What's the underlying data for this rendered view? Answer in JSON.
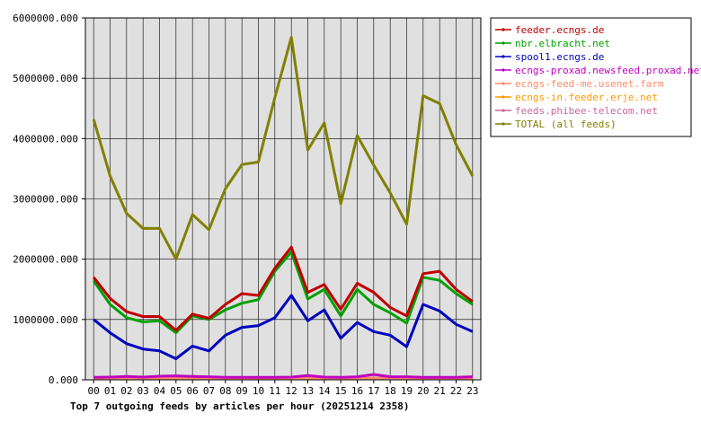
{
  "chart_data": {
    "type": "line",
    "title": "Top 7 outgoing feeds by articles per hour (20251214 2358)",
    "xlabel": "",
    "ylabel": "",
    "ylim": [
      0,
      6000000
    ],
    "yticks": [
      "0.000",
      "1000000.000",
      "2000000.000",
      "3000000.000",
      "4000000.000",
      "5000000.000",
      "6000000.000"
    ],
    "categories": [
      "00",
      "01",
      "02",
      "03",
      "04",
      "05",
      "06",
      "07",
      "08",
      "09",
      "10",
      "11",
      "12",
      "13",
      "14",
      "15",
      "16",
      "17",
      "18",
      "19",
      "20",
      "21",
      "22",
      "23"
    ],
    "grid": true,
    "legend_position": "right",
    "series": [
      {
        "name": "feeder.ecngs.de",
        "color": "#c00000",
        "values": [
          1700000,
          1350000,
          1130000,
          1050000,
          1050000,
          820000,
          1090000,
          1020000,
          1250000,
          1430000,
          1400000,
          1850000,
          2200000,
          1450000,
          1580000,
          1170000,
          1600000,
          1450000,
          1200000,
          1060000,
          1760000,
          1800000,
          1500000,
          1300000
        ]
      },
      {
        "name": "nbr.elbracht.net",
        "color": "#00a000",
        "values": [
          1640000,
          1250000,
          1030000,
          960000,
          980000,
          780000,
          1060000,
          1000000,
          1160000,
          1270000,
          1330000,
          1800000,
          2120000,
          1340000,
          1500000,
          1060000,
          1500000,
          1250000,
          1110000,
          940000,
          1700000,
          1650000,
          1430000,
          1250000
        ]
      },
      {
        "name": "spool1.ecngs.de",
        "color": "#0000c0",
        "values": [
          1000000,
          780000,
          600000,
          510000,
          480000,
          350000,
          560000,
          480000,
          740000,
          870000,
          900000,
          1030000,
          1400000,
          980000,
          1160000,
          690000,
          950000,
          800000,
          740000,
          550000,
          1250000,
          1140000,
          920000,
          800000
        ]
      },
      {
        "name": "ecngs-proxad.newsfeed.proxad.net",
        "color": "#c000c0",
        "values": [
          40000,
          45000,
          55000,
          45000,
          60000,
          65000,
          55000,
          50000,
          40000,
          40000,
          40000,
          40000,
          45000,
          70000,
          45000,
          40000,
          50000,
          90000,
          50000,
          50000,
          40000,
          40000,
          40000,
          50000
        ]
      },
      {
        "name": "ecngs-feed-me.usenet.farm",
        "color": "#ff8c69",
        "values": [
          30000,
          30000,
          30000,
          30000,
          30000,
          30000,
          30000,
          30000,
          30000,
          30000,
          30000,
          30000,
          30000,
          30000,
          30000,
          30000,
          30000,
          30000,
          30000,
          30000,
          30000,
          30000,
          30000,
          30000
        ]
      },
      {
        "name": "ecngs-in.feeder.erje.net",
        "color": "#ff9900",
        "values": [
          20000,
          20000,
          20000,
          20000,
          20000,
          20000,
          20000,
          20000,
          20000,
          20000,
          20000,
          20000,
          20000,
          20000,
          20000,
          20000,
          20000,
          20000,
          20000,
          20000,
          20000,
          20000,
          20000,
          20000
        ]
      },
      {
        "name": "feeds.phibee-telecom.net",
        "color": "#cc6699",
        "values": [
          25000,
          25000,
          25000,
          25000,
          25000,
          25000,
          25000,
          25000,
          25000,
          25000,
          25000,
          25000,
          25000,
          25000,
          25000,
          25000,
          25000,
          25000,
          25000,
          25000,
          25000,
          25000,
          25000,
          25000
        ]
      },
      {
        "name": "TOTAL (all feeds)",
        "color": "#808000",
        "values": [
          4320000,
          3380000,
          2760000,
          2510000,
          2510000,
          2000000,
          2740000,
          2490000,
          3170000,
          3570000,
          3610000,
          4680000,
          5680000,
          3810000,
          4260000,
          2920000,
          4050000,
          3560000,
          3100000,
          2580000,
          4710000,
          4580000,
          3900000,
          3380000
        ]
      }
    ]
  }
}
